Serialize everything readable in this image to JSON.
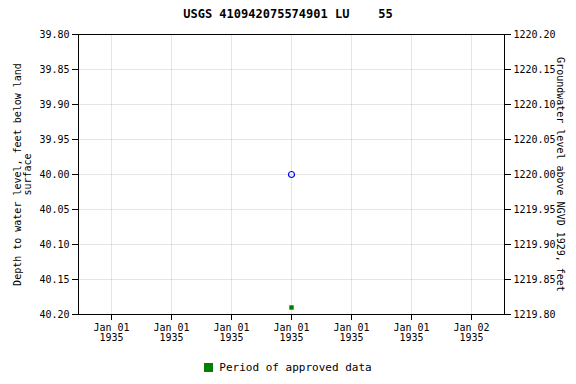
{
  "chart_data": {
    "type": "scatter",
    "title": "USGS 410942075574901 LU    55",
    "y_label": "Depth to water level, feet below land\nsurface",
    "y2_label": "Groundwater level above NGVD 1929, feet",
    "categories": [
      "Jan 01\n1935",
      "Jan 01\n1935",
      "Jan 01\n1935",
      "Jan 01\n1935",
      "Jan 01\n1935",
      "Jan 01\n1935",
      "Jan 02\n1935"
    ],
    "series": [
      {
        "color": "#0000ff",
        "marker": "circle",
        "values": [
          null,
          null,
          null,
          40.0,
          null,
          null,
          null
        ]
      },
      {
        "name": "Period of approved data",
        "color": "#008000",
        "marker": "square",
        "values": [
          null,
          null,
          null,
          40.19,
          null,
          null,
          null
        ]
      }
    ],
    "ylim": [
      40.2,
      39.8
    ],
    "yticks": [
      {
        "value": 39.8,
        "label": "39.80"
      },
      {
        "value": 39.85,
        "label": "39.85"
      },
      {
        "value": 39.9,
        "label": "39.90"
      },
      {
        "value": 39.95,
        "label": "39.95"
      },
      {
        "value": 40.0,
        "label": "40.00"
      },
      {
        "value": 40.05,
        "label": "40.05"
      },
      {
        "value": 40.1,
        "label": "40.10"
      },
      {
        "value": 40.15,
        "label": "40.15"
      },
      {
        "value": 40.2,
        "label": "40.20"
      }
    ],
    "y2lim": [
      1219.8,
      1220.2
    ],
    "y2ticks": [
      {
        "value": 1220.2,
        "label": "1220.20"
      },
      {
        "value": 1220.15,
        "label": "1220.15"
      },
      {
        "value": 1220.1,
        "label": "1220.10"
      },
      {
        "value": 1220.05,
        "label": "1220.05"
      },
      {
        "value": 1220.0,
        "label": "1220.00"
      },
      {
        "value": 1219.95,
        "label": "1219.95"
      },
      {
        "value": 1219.9,
        "label": "1219.90"
      },
      {
        "value": 1219.85,
        "label": "1219.85"
      },
      {
        "value": 1219.8,
        "label": "1219.80"
      }
    ],
    "grid": true,
    "legend": "bottom"
  }
}
